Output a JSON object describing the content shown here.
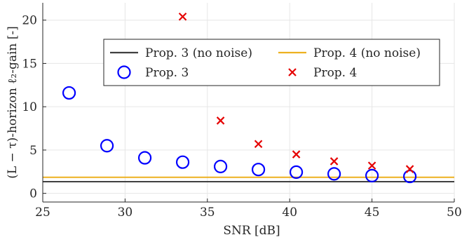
{
  "chart_data": {
    "type": "scatter",
    "xlabel": "SNR [dB]",
    "ylabel": "(L − τ)-horizon ℓ₂-gain [-]",
    "xlim": [
      25,
      50
    ],
    "ylim": [
      -1,
      22
    ],
    "x_ticks": [
      25,
      30,
      35,
      40,
      45,
      50
    ],
    "y_ticks": [
      0,
      5,
      10,
      15,
      20
    ],
    "grid": true,
    "legend_position": "top-center",
    "legend_columns": 2,
    "series": [
      {
        "name": "Prop. 3 (no noise)",
        "kind": "hline",
        "y": 1.35,
        "color": "#404040"
      },
      {
        "name": "Prop. 4 (no noise)",
        "kind": "hline",
        "y": 1.85,
        "color": "#EDB120"
      },
      {
        "name": "Prop. 3",
        "kind": "scatter",
        "marker": "circle",
        "color": "#0000FF",
        "x": [
          26.6,
          28.9,
          31.2,
          33.5,
          35.8,
          38.1,
          40.4,
          42.7,
          45.0,
          47.3
        ],
        "y": [
          11.6,
          5.5,
          4.1,
          3.6,
          3.1,
          2.75,
          2.45,
          2.25,
          2.05,
          1.95
        ]
      },
      {
        "name": "Prop. 4",
        "kind": "scatter",
        "marker": "x",
        "color": "#E50000",
        "x": [
          33.5,
          35.8,
          38.1,
          40.4,
          42.7,
          45.0,
          47.3
        ],
        "y": [
          20.4,
          8.4,
          5.7,
          4.5,
          3.7,
          3.2,
          2.8
        ]
      }
    ]
  }
}
